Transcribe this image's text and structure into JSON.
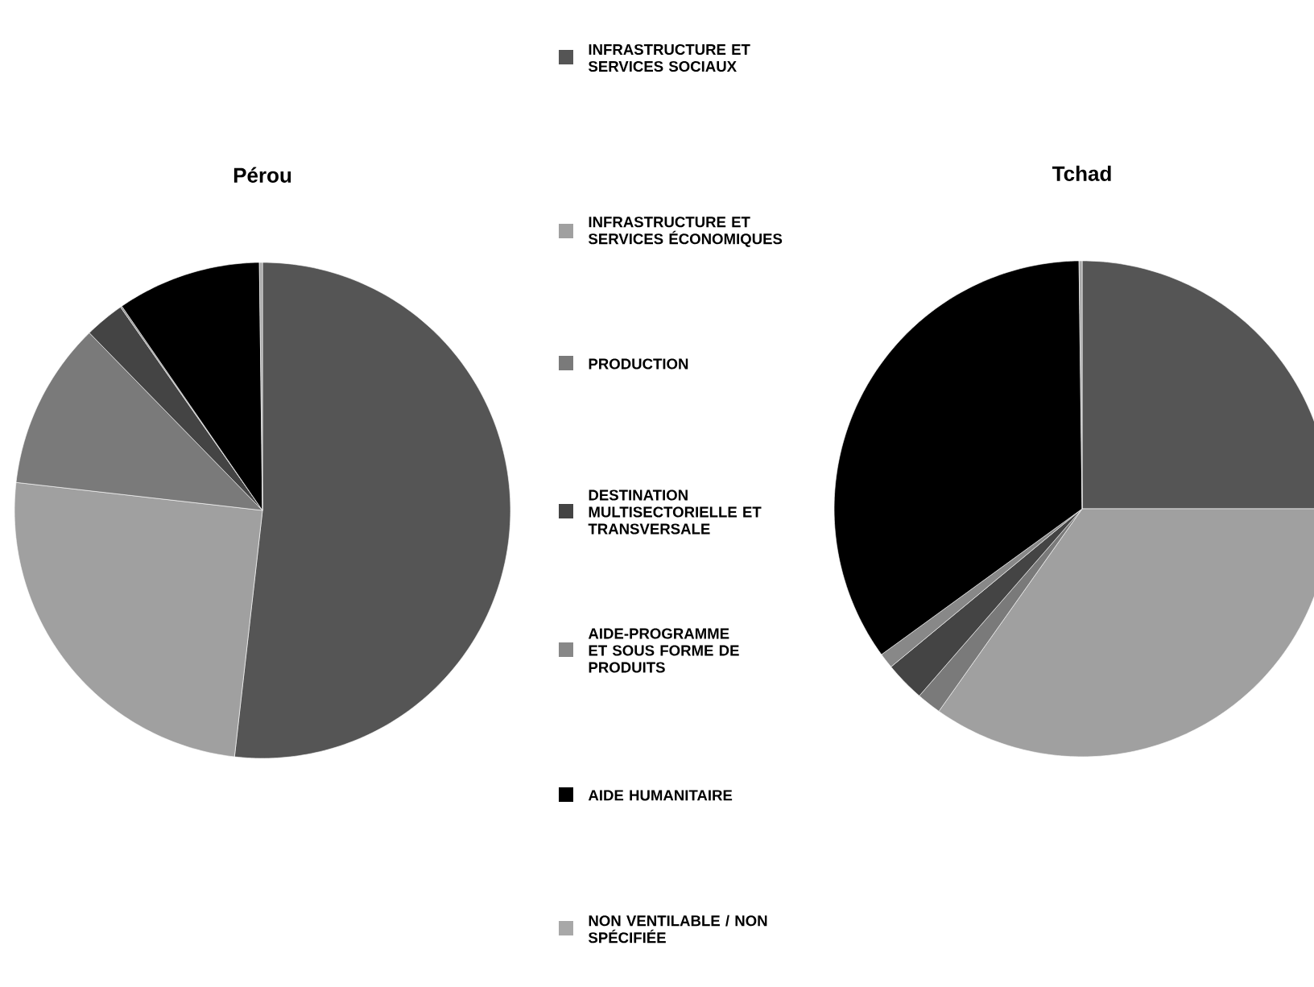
{
  "chart_data": [
    {
      "type": "pie",
      "title": "Pérou",
      "legend": "right",
      "categories": [
        "INFRASTRUCTURE ET SERVICES SOCIAUX",
        "INFRASTRUCTURE ET SERVICES ÉCONOMIQUES",
        "PRODUCTION",
        "DESTINATION MULTISECTORIELLE ET TRANSVERSALE",
        "AIDE-PROGRAMME ET SOUS FORME DE PRODUITS",
        "AIDE HUMANITAIRE",
        "NON VENTILABLE / NON SPÉCIFIÉE"
      ],
      "values": [
        51.8,
        25.0,
        10.9,
        2.6,
        0.1,
        9.4,
        0.2
      ],
      "colors": [
        "#555555",
        "#a0a0a0",
        "#7a7a7a",
        "#444444",
        "#888888",
        "#000000",
        "#a8a8a8"
      ]
    },
    {
      "type": "pie",
      "title": "Tchad",
      "categories": [
        null,
        null,
        null,
        null,
        null,
        null,
        null
      ],
      "values": [
        25.0,
        34.8,
        1.6,
        2.6,
        1.0,
        34.8,
        0.2
      ],
      "colors": [
        "#555555",
        "#a0a0a0",
        "#7a7a7a",
        "#444444",
        "#888888",
        "#000000",
        "#a8a8a8"
      ]
    }
  ]
}
